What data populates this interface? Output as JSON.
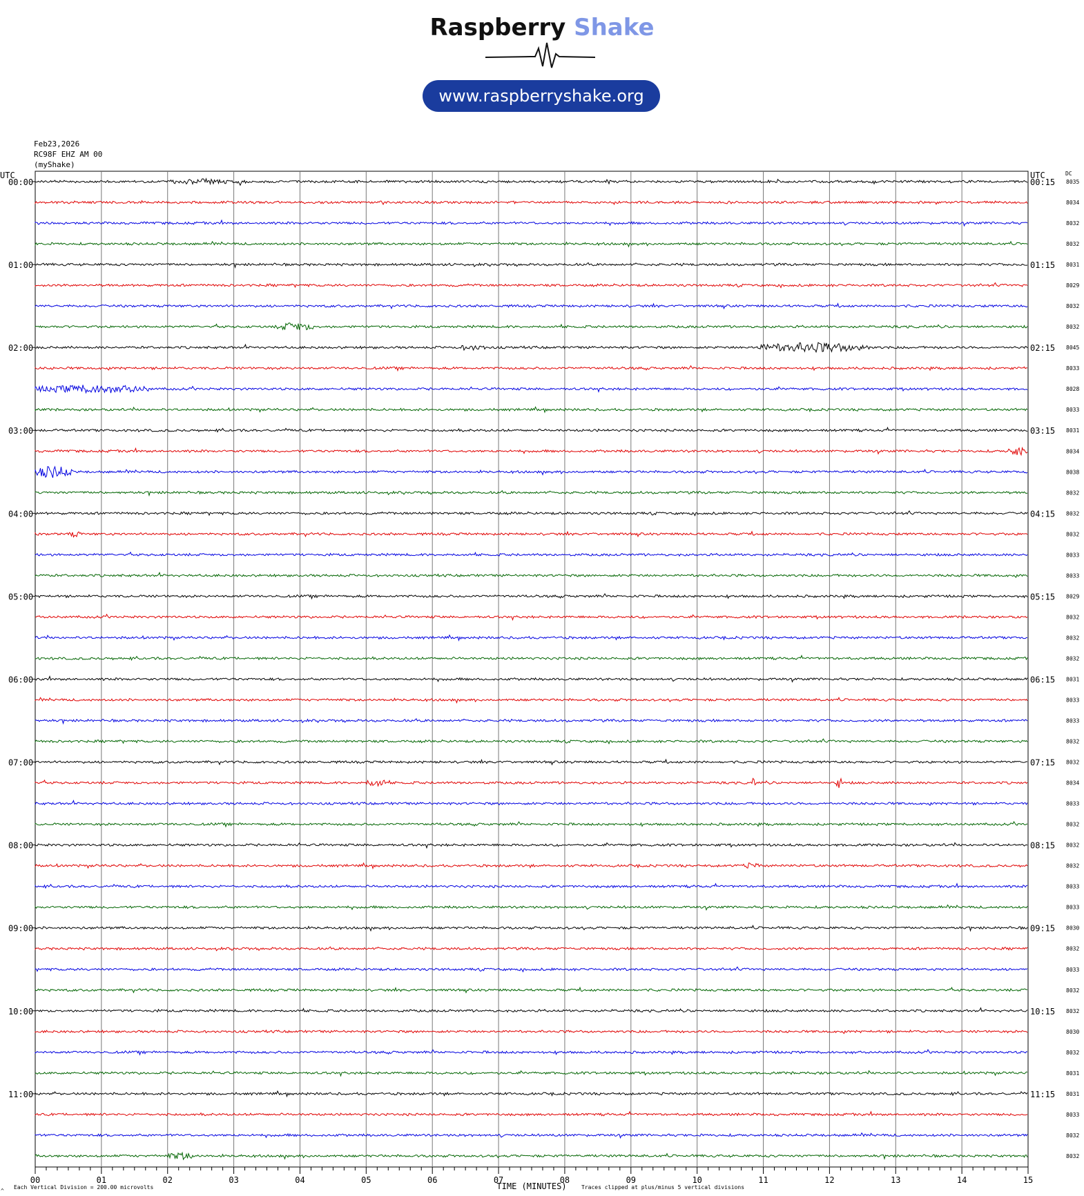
{
  "logo": {
    "brand_primary": "Raspberry",
    "brand_secondary": "Shake",
    "url": "www.raspberryshake.org"
  },
  "header": {
    "date": "Feb23,2026",
    "station": "RC98F EHZ AM 00",
    "network": "(myShake)"
  },
  "chart_data": {
    "type": "line",
    "title": "",
    "left_axis_label": "UTC",
    "right_axis_label": "UTC",
    "dc_label": "DC",
    "xlabel": "TIME (MINUTES)",
    "x_ticks": [
      "00",
      "01",
      "02",
      "03",
      "04",
      "05",
      "06",
      "07",
      "08",
      "09",
      "10",
      "11",
      "12",
      "13",
      "14",
      "15"
    ],
    "xlim": [
      0,
      15
    ],
    "left_time_labels": [
      "00:00",
      "01:00",
      "02:00",
      "03:00",
      "04:00",
      "05:00",
      "06:00",
      "07:00",
      "08:00",
      "09:00",
      "10:00",
      "11:00"
    ],
    "right_time_labels": [
      "00:15",
      "01:15",
      "02:15",
      "03:15",
      "04:15",
      "05:15",
      "06:15",
      "07:15",
      "08:15",
      "09:15",
      "10:15",
      "11:15"
    ],
    "trace_colors": [
      "#000000",
      "#e00000",
      "#0000e0",
      "#006400"
    ],
    "dc_offsets": [
      "8035",
      "8034",
      "8032",
      "8032",
      "8031",
      "8029",
      "8032",
      "8032",
      "8045",
      "8033",
      "8028",
      "8033",
      "8031",
      "8034",
      "8038",
      "8032",
      "8032",
      "8032",
      "8033",
      "8033",
      "8029",
      "8032",
      "8032",
      "8032",
      "8031",
      "8033",
      "8033",
      "8032",
      "8032",
      "8034",
      "8033",
      "8032",
      "8032",
      "8032",
      "8033",
      "8033",
      "8030",
      "8032",
      "8033",
      "8032",
      "8032",
      "8030",
      "8032",
      "8031",
      "8031",
      "8033",
      "8032",
      "8032"
    ],
    "events": [
      {
        "row": 0,
        "start": 2.0,
        "end": 3.2,
        "amp": 2.5
      },
      {
        "row": 7,
        "start": 3.65,
        "end": 4.2,
        "amp": 5
      },
      {
        "row": 8,
        "start": 10.9,
        "end": 12.6,
        "amp": 6
      },
      {
        "row": 8,
        "start": 6.4,
        "end": 6.8,
        "amp": 3
      },
      {
        "row": 10,
        "start": 0.0,
        "end": 1.75,
        "amp": 5
      },
      {
        "row": 13,
        "start": 14.7,
        "end": 15.0,
        "amp": 6
      },
      {
        "row": 14,
        "start": 0.0,
        "end": 0.55,
        "amp": 8
      },
      {
        "row": 17,
        "start": 0.5,
        "end": 0.7,
        "amp": 3
      },
      {
        "row": 29,
        "start": 5.0,
        "end": 5.3,
        "amp": 5
      },
      {
        "row": 29,
        "start": 10.8,
        "end": 10.9,
        "amp": 5
      },
      {
        "row": 29,
        "start": 12.1,
        "end": 12.2,
        "amp": 7
      },
      {
        "row": 33,
        "start": 10.7,
        "end": 10.95,
        "amp": 3
      },
      {
        "row": 47,
        "start": 2.0,
        "end": 2.4,
        "amp": 4
      }
    ]
  },
  "footer": {
    "scale_note": "Each Vertical Division =  200.00 microvolts",
    "clip_note": "Traces clipped at plus/minus 5 vertical divisions",
    "corner_mark": "^"
  }
}
